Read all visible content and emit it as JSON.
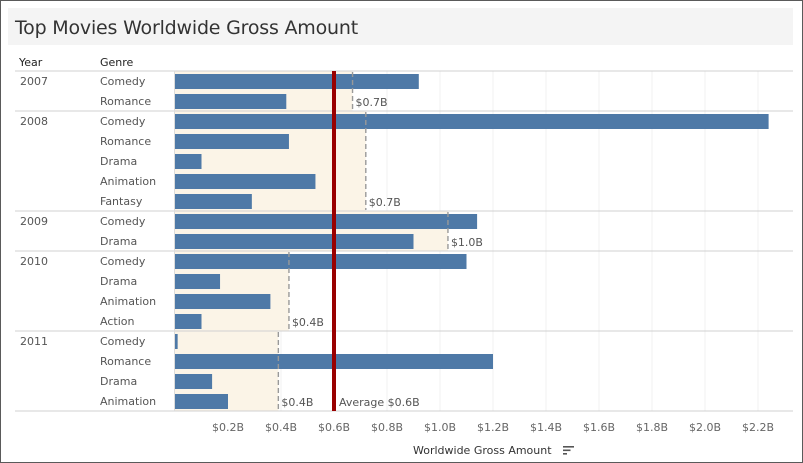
{
  "title": "Top Movies Worldwide Gross Amount",
  "headers": {
    "year": "Year",
    "genre": "Genre"
  },
  "axis_title": "Worldwide Gross Amount",
  "colors": {
    "bar": "#4e79a7",
    "band": "#fbf4e7",
    "average_line": "#990000",
    "ref_line": "#999999"
  },
  "chart_data": {
    "type": "bar",
    "orientation": "horizontal",
    "xlabel": "Worldwide Gross Amount",
    "xlim": [
      0,
      2.3
    ],
    "x_unit": "B",
    "ticks": [
      {
        "value": 0.2,
        "label": "$0.2B"
      },
      {
        "value": 0.4,
        "label": "$0.4B"
      },
      {
        "value": 0.6,
        "label": "$0.6B"
      },
      {
        "value": 0.8,
        "label": "$0.8B"
      },
      {
        "value": 1.0,
        "label": "$1.0B"
      },
      {
        "value": 1.2,
        "label": "$1.2B"
      },
      {
        "value": 1.4,
        "label": "$1.4B"
      },
      {
        "value": 1.6,
        "label": "$1.6B"
      },
      {
        "value": 1.8,
        "label": "$1.8B"
      },
      {
        "value": 2.0,
        "label": "$2.0B"
      },
      {
        "value": 2.2,
        "label": "$2.2B"
      }
    ],
    "groups": [
      {
        "year": "2007",
        "avg": 0.67,
        "avg_label": "$0.7B",
        "rows": [
          {
            "genre": "Comedy",
            "value": 0.92
          },
          {
            "genre": "Romance",
            "value": 0.42
          }
        ]
      },
      {
        "year": "2008",
        "avg": 0.72,
        "avg_label": "$0.7B",
        "rows": [
          {
            "genre": "Comedy",
            "value": 2.24
          },
          {
            "genre": "Romance",
            "value": 0.43
          },
          {
            "genre": "Drama",
            "value": 0.1
          },
          {
            "genre": "Animation",
            "value": 0.53
          },
          {
            "genre": "Fantasy",
            "value": 0.29
          }
        ]
      },
      {
        "year": "2009",
        "avg": 1.03,
        "avg_label": "$1.0B",
        "rows": [
          {
            "genre": "Comedy",
            "value": 1.14
          },
          {
            "genre": "Drama",
            "value": 0.9
          }
        ]
      },
      {
        "year": "2010",
        "avg": 0.43,
        "avg_label": "$0.4B",
        "rows": [
          {
            "genre": "Comedy",
            "value": 1.1
          },
          {
            "genre": "Drama",
            "value": 0.17
          },
          {
            "genre": "Animation",
            "value": 0.36
          },
          {
            "genre": "Action",
            "value": 0.1
          }
        ]
      },
      {
        "year": "2011",
        "avg": 0.39,
        "avg_label": "$0.4B",
        "rows": [
          {
            "genre": "Comedy",
            "value": 0.01
          },
          {
            "genre": "Romance",
            "value": 1.2
          },
          {
            "genre": "Drama",
            "value": 0.14
          },
          {
            "genre": "Animation",
            "value": 0.2
          }
        ]
      }
    ],
    "overall_average": {
      "value": 0.6,
      "label": "Average $0.6B"
    }
  }
}
